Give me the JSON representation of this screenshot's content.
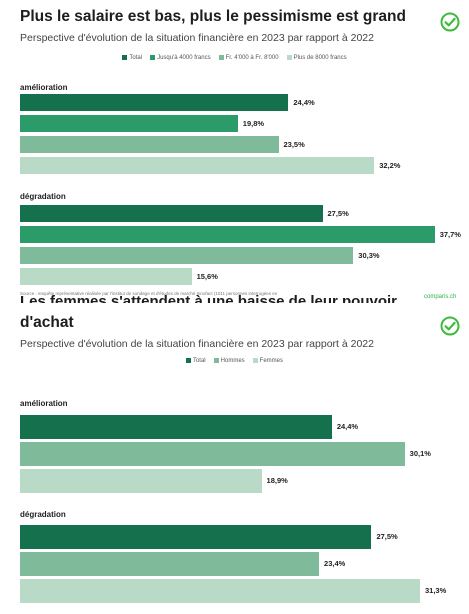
{
  "panel1": {
    "title": "Plus le salaire est bas, plus le pessimisme est grand",
    "subtitle": "Perspective d'évolution de la situation financière en 2023 par rapport à 2022",
    "source": "Source : enquête représentative réalisée par l'institut de sondage et d'études de marché Innofact (1011 personnes interrogées en",
    "brand": "comparis.ch"
  },
  "panel2": {
    "title_line1": "Les femmes s'attendent à une baisse de leur pouvoir",
    "title_line2": "d'achat",
    "subtitle": "Perspective d'évolution de la situation financière en 2023 par rapport à 2022"
  },
  "colors": {
    "dark": "#14704d",
    "medium": "#2a9b69",
    "light": "#7fbb9a",
    "pale": "#b9dac6",
    "check": "#3dbb3d"
  },
  "icons": {
    "check": "check-circle-icon"
  },
  "chart_data": [
    {
      "type": "bar",
      "orientation": "horizontal",
      "title": "Plus le salaire est bas, plus le pessimisme est grand",
      "subtitle": "Perspective d'évolution de la situation financière en 2023 par rapport à 2022",
      "legend_position": "top",
      "categories": [
        "amélioration",
        "dégradation"
      ],
      "series": [
        {
          "name": "Total",
          "values": [
            24.4,
            27.5
          ],
          "labels": [
            "24,4%",
            "27,5%"
          ]
        },
        {
          "name": "Jusqu'à 4000 francs",
          "values": [
            19.8,
            37.7
          ],
          "labels": [
            "19,8%",
            "37,7%"
          ]
        },
        {
          "name": "Fr. 4'000 à Fr. 8'000",
          "values": [
            23.5,
            30.3
          ],
          "labels": [
            "23,5%",
            "30,3%"
          ]
        },
        {
          "name": "Plus de 8000 francs",
          "values": [
            32.2,
            15.6
          ],
          "labels": [
            "32,2%",
            "15,6%"
          ]
        }
      ],
      "xlim": [
        0,
        38
      ],
      "grid": false
    },
    {
      "type": "bar",
      "orientation": "horizontal",
      "title": "Les femmes s'attendent à une baisse de leur pouvoir d'achat",
      "subtitle": "Perspective d'évolution de la situation financière en 2023 par rapport à 2022",
      "legend_position": "top",
      "categories": [
        "amélioration",
        "dégradation"
      ],
      "series": [
        {
          "name": "Total",
          "values": [
            24.4,
            27.5
          ],
          "labels": [
            "24,4%",
            "27,5%"
          ]
        },
        {
          "name": "Hommes",
          "values": [
            30.1,
            23.4
          ],
          "labels": [
            "30,1%",
            "23,4%"
          ]
        },
        {
          "name": "Femmes",
          "values": [
            18.9,
            31.3
          ],
          "labels": [
            "18,9%",
            "31,3%"
          ]
        }
      ],
      "xlim": [
        0,
        32
      ],
      "grid": false
    }
  ]
}
